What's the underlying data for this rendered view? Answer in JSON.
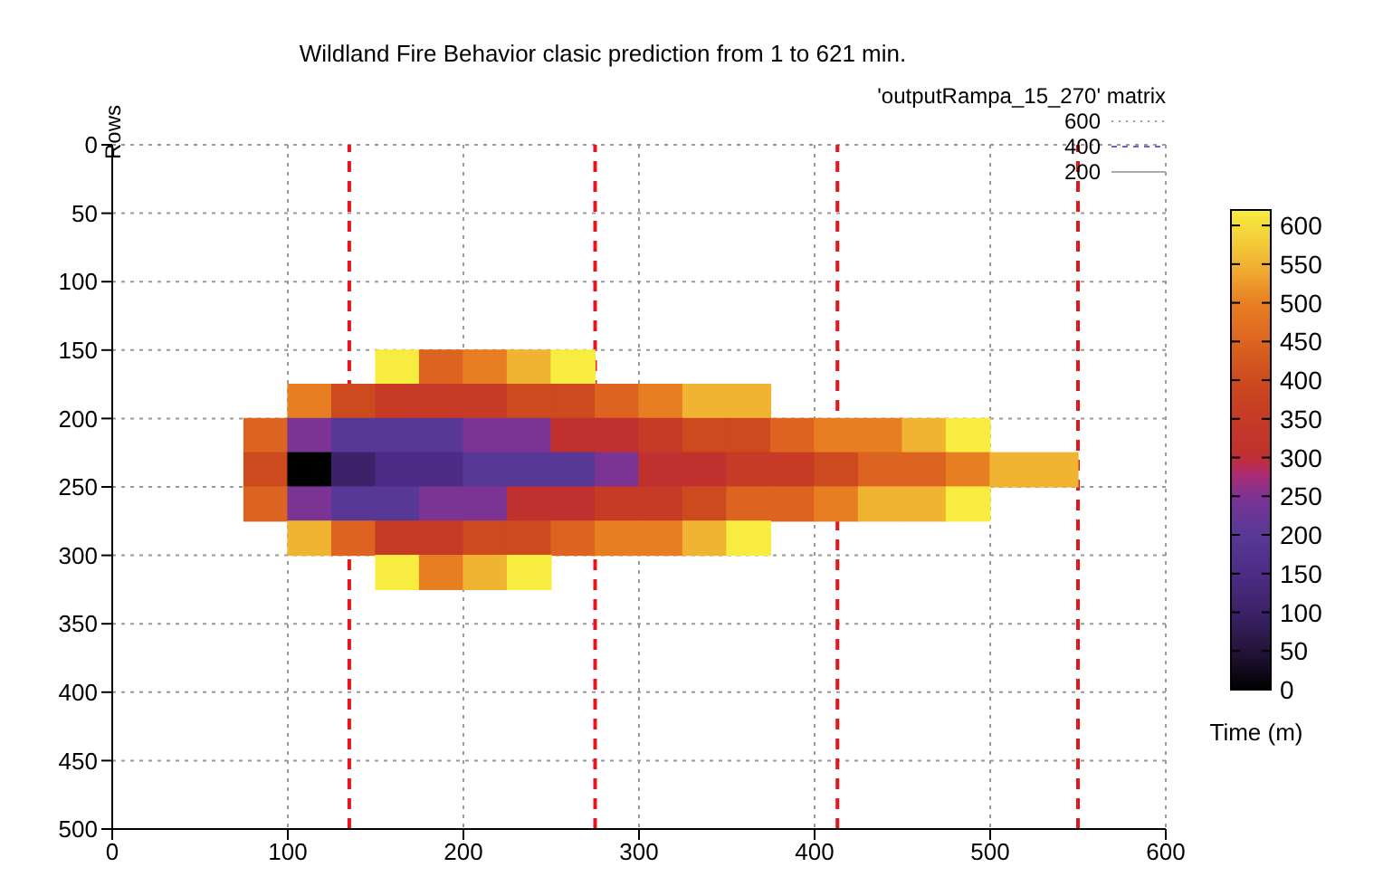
{
  "chart_data": {
    "type": "scatter",
    "marker": "square",
    "title": "Wildland Fire Behavior clasic prediction from 1 to 621 min.",
    "ylabel": "Rows",
    "clabel": "Time (m)",
    "annotations": [
      "'outputRampa_15_270' matrix",
      "600",
      "400",
      "200"
    ],
    "xlim": [
      0,
      600
    ],
    "xticks": [
      0,
      100,
      200,
      300,
      400,
      500,
      600
    ],
    "ylim": [
      500,
      0
    ],
    "yticks": [
      0,
      50,
      100,
      150,
      200,
      250,
      300,
      350,
      400,
      450,
      500
    ],
    "clim": [
      0,
      620
    ],
    "cticks": [
      0,
      50,
      100,
      150,
      200,
      250,
      300,
      350,
      400,
      450,
      500,
      550,
      600
    ],
    "grid": true,
    "ref_lines": [
      {
        "axis": "x",
        "value": 135,
        "color": "#e8141c",
        "line_style": "dashed"
      },
      {
        "axis": "x",
        "value": 275,
        "color": "#e8141c",
        "line_style": "dashed"
      },
      {
        "axis": "x",
        "value": 413,
        "color": "#e8141c",
        "line_style": "dashed"
      },
      {
        "axis": "x",
        "value": 550,
        "color": "#e8141c",
        "line_style": "dashed"
      }
    ],
    "series": [
      {
        "x": [
          162.5,
          187.5,
          212.5,
          237.5,
          262.5
        ],
        "values": [
          162.5,
          162.5,
          162.5,
          162.5,
          162.5
        ],
        "colors": [
          "#f8ec40",
          "#dc6420",
          "#e87e22",
          "#f0b432",
          "#f8ec40"
        ]
      },
      {
        "x": [
          112.5,
          137.5,
          162.5,
          187.5,
          212.5,
          237.5,
          262.5,
          287.5,
          312.5,
          337.5,
          362.5
        ],
        "values": [
          187.5,
          187.5,
          187.5,
          187.5,
          187.5,
          187.5,
          187.5,
          187.5,
          187.5,
          187.5,
          187.5
        ],
        "colors": [
          "#e87e22",
          "#cc4a1e",
          "#c63a26",
          "#c63a26",
          "#c63a26",
          "#cc4a1e",
          "#cc4a1e",
          "#dc6420",
          "#e87e22",
          "#f0b432",
          "#f0b432"
        ]
      },
      {
        "x": [
          87.5,
          112.5,
          137.5,
          162.5,
          187.5,
          212.5,
          237.5,
          262.5,
          287.5,
          312.5,
          337.5,
          362.5,
          387.5,
          412.5,
          437.5,
          462.5,
          487.5
        ],
        "values": [
          212.5,
          212.5,
          212.5,
          212.5,
          212.5,
          212.5,
          212.5,
          212.5,
          212.5,
          212.5,
          212.5,
          212.5,
          212.5,
          212.5,
          212.5,
          212.5,
          212.5
        ],
        "colors": [
          "#dc6420",
          "#7c3494",
          "#583896",
          "#583896",
          "#583896",
          "#7c3494",
          "#7c3494",
          "#c0302e",
          "#c0302e",
          "#c63a26",
          "#cc4a1e",
          "#cc4a1e",
          "#dc6420",
          "#e87e22",
          "#e87e22",
          "#f0b432",
          "#f8ec40"
        ]
      },
      {
        "x": [
          87.5,
          112.5,
          137.5,
          162.5,
          187.5,
          212.5,
          237.5,
          262.5,
          287.5,
          312.5,
          337.5,
          362.5,
          387.5,
          412.5,
          437.5,
          462.5,
          487.5,
          512.5,
          537.5
        ],
        "values": [
          237.5,
          237.5,
          237.5,
          237.5,
          237.5,
          237.5,
          237.5,
          237.5,
          237.5,
          237.5,
          237.5,
          237.5,
          237.5,
          237.5,
          237.5,
          237.5,
          237.5,
          237.5,
          237.5
        ],
        "colors": [
          "#cc4a1e",
          "#000000",
          "#3c2268",
          "#4c2c86",
          "#4c2c86",
          "#583896",
          "#583896",
          "#583896",
          "#7c3494",
          "#c0302e",
          "#c0302e",
          "#c63a26",
          "#c63a26",
          "#cc4a1e",
          "#dc6420",
          "#dc6420",
          "#e87e22",
          "#f0b432",
          "#f0b432"
        ]
      },
      {
        "x": [
          87.5,
          112.5,
          137.5,
          162.5,
          187.5,
          212.5,
          237.5,
          262.5,
          287.5,
          312.5,
          337.5,
          362.5,
          387.5,
          412.5,
          437.5,
          462.5,
          487.5
        ],
        "values": [
          262.5,
          262.5,
          262.5,
          262.5,
          262.5,
          262.5,
          262.5,
          262.5,
          262.5,
          262.5,
          262.5,
          262.5,
          262.5,
          262.5,
          262.5,
          262.5,
          262.5
        ],
        "colors": [
          "#dc6420",
          "#7c3494",
          "#583896",
          "#583896",
          "#7c3494",
          "#7c3494",
          "#c0302e",
          "#c0302e",
          "#c63a26",
          "#c63a26",
          "#cc4a1e",
          "#dc6420",
          "#dc6420",
          "#e87e22",
          "#f0b432",
          "#f0b432",
          "#f8ec40"
        ]
      },
      {
        "x": [
          112.5,
          137.5,
          162.5,
          187.5,
          212.5,
          237.5,
          262.5,
          287.5,
          312.5,
          337.5,
          362.5
        ],
        "values": [
          287.5,
          287.5,
          287.5,
          287.5,
          287.5,
          287.5,
          287.5,
          287.5,
          287.5,
          287.5,
          287.5
        ],
        "colors": [
          "#f0b432",
          "#dc6420",
          "#c63a26",
          "#c63a26",
          "#cc4a1e",
          "#cc4a1e",
          "#dc6420",
          "#e87e22",
          "#e87e22",
          "#f0b432",
          "#f8ec40"
        ]
      },
      {
        "x": [
          162.5,
          187.5,
          212.5,
          237.5
        ],
        "values": [
          312.5,
          312.5,
          312.5,
          312.5
        ],
        "colors": [
          "#f8ec40",
          "#e87e22",
          "#f0b432",
          "#f8ec40"
        ]
      }
    ]
  }
}
